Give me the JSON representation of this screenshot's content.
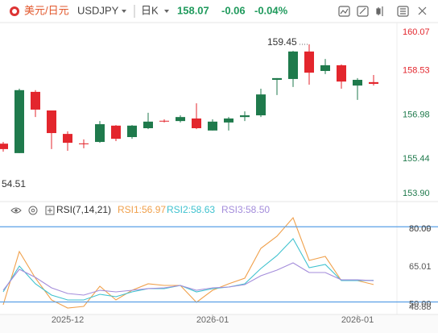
{
  "header": {
    "symbol_cn": "美元/日元",
    "symbol": "USDJPY",
    "period": "日K",
    "price": "158.07",
    "change": "-0.06",
    "change_pct": "-0.04%"
  },
  "chart_data": [
    {
      "type": "candlestick",
      "up_color": "#1f7a4c",
      "down_color": "#e3262d",
      "open": [
        155.98,
        155.65,
        157.79,
        157.14,
        156.32,
        155.99,
        156.04,
        156.61,
        156.21,
        156.52,
        156.78,
        156.77,
        156.86,
        156.44,
        156.72,
        156.91,
        156.97,
        158.21,
        158.24,
        159.2,
        158.52,
        158.72,
        158.01,
        158.13
      ],
      "high": [
        156.04,
        157.9,
        157.85,
        157.14,
        156.41,
        156.13,
        156.77,
        156.63,
        156.63,
        157.06,
        156.83,
        156.97,
        157.39,
        156.83,
        156.91,
        157.11,
        157.9,
        158.27,
        159.22,
        159.45,
        158.94,
        158.75,
        158.27,
        158.38
      ],
      "low": [
        155.7,
        155.65,
        156.91,
        155.79,
        155.73,
        155.82,
        156.01,
        156.07,
        156.15,
        156.49,
        156.72,
        156.72,
        156.49,
        156.44,
        156.44,
        156.77,
        156.91,
        157.68,
        157.96,
        158.04,
        158.41,
        157.9,
        157.51,
        158.01
      ],
      "close": [
        155.79,
        157.85,
        157.17,
        156.35,
        156.01,
        155.96,
        156.66,
        156.15,
        156.61,
        156.75,
        156.76,
        156.91,
        156.52,
        156.75,
        156.86,
        156.97,
        157.7,
        158.27,
        159.2,
        158.46,
        158.72,
        158.15,
        158.21,
        158.07
      ],
      "ylim": [
        153.9,
        160.07
      ],
      "yticks": [
        160.07,
        158.53,
        156.98,
        155.44,
        {
          "value": 153.9,
          "label": "153.90"
        }
      ],
      "annotations": [
        {
          "text": "159.45",
          "value": 159.45
        },
        {
          "text": "54.51"
        }
      ]
    },
    {
      "type": "line",
      "title": "RSI(7,14,21)",
      "categories": [
        null,
        null,
        null,
        null,
        "2025-12",
        null,
        null,
        null,
        null,
        null,
        null,
        null,
        null,
        "2026-01",
        null,
        null,
        null,
        null,
        null,
        null,
        null,
        null,
        "2026-01",
        null
      ],
      "series": [
        {
          "name": "RSI1:56.97",
          "color": "#f0a04b",
          "values": [
            48.88,
            70.12,
            59.5,
            50.81,
            47.59,
            48.24,
            56.28,
            50.81,
            54.67,
            57.25,
            56.6,
            56.6,
            49.85,
            54.67,
            57.25,
            59.5,
            71.4,
            76.23,
            83.63,
            66.58,
            68.18,
            58.53,
            58.53,
            56.97
          ]
        },
        {
          "name": "RSI2:58.63",
          "color": "#3fc2cf",
          "values": [
            54.03,
            64.32,
            57.25,
            52.74,
            50.81,
            50.81,
            53.06,
            52.1,
            54.03,
            55.32,
            55.32,
            56.6,
            54.03,
            55.32,
            55.96,
            57.25,
            63.36,
            68.51,
            75.26,
            63.68,
            64.97,
            58.53,
            58.53,
            58.63
          ]
        },
        {
          "name": "RSI3:58.50",
          "color": "#a48ddb",
          "values": [
            54.67,
            63.04,
            59.82,
            55.64,
            53.38,
            52.74,
            54.67,
            54.03,
            54.67,
            55.32,
            55.64,
            56.6,
            54.67,
            55.64,
            55.96,
            56.92,
            60.46,
            62.72,
            65.61,
            61.75,
            61.75,
            58.85,
            58.85,
            58.5
          ]
        }
      ],
      "ylim": [
        48.88,
        80.09
      ],
      "yticks": [
        {
          "value": 80,
          "label": "80.00"
        },
        80.09,
        65.01,
        {
          "value": 50,
          "label": "50.00"
        },
        48.88
      ],
      "hlines": [
        80,
        50
      ],
      "hline_color": "#5aa0e6"
    }
  ]
}
